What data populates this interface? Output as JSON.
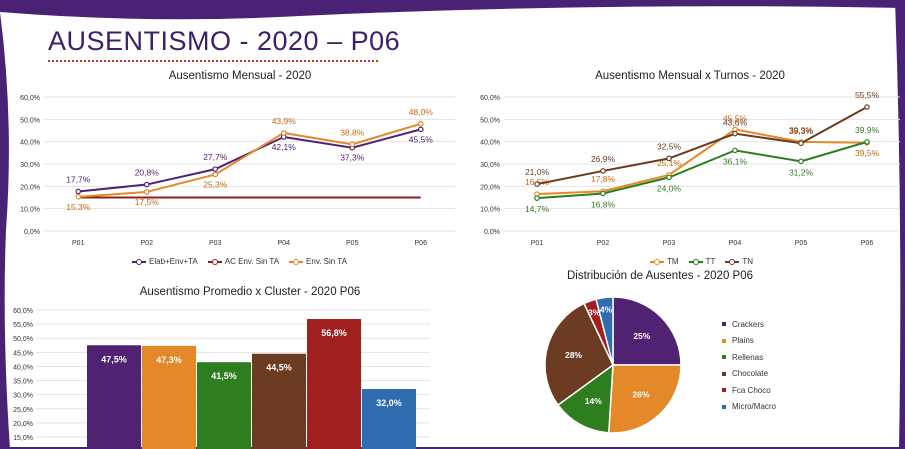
{
  "page": {
    "title": "AUSENTISMO - 2020 – P06",
    "colors": {
      "frame": "#4a2275",
      "title": "#3b2169"
    }
  },
  "chart_data": [
    {
      "id": "mensual",
      "type": "line",
      "title": "Ausentismo Mensual - 2020",
      "categories": [
        "P01",
        "P02",
        "P03",
        "P04",
        "P05",
        "P06"
      ],
      "yticks": [
        "0,0%",
        "10,0%",
        "20,0%",
        "30,0%",
        "40,0%",
        "50,0%",
        "60,0%"
      ],
      "ylim": [
        0,
        60
      ],
      "series": [
        {
          "name": "Elab+Env+TA",
          "color": "#4f2272",
          "values": [
            17.7,
            20.8,
            27.7,
            42.1,
            37.3,
            45.5
          ],
          "labels": [
            "17,7%",
            "20,8%",
            "27,7%",
            "42,1%",
            "37,3%",
            "45,5%"
          ],
          "marker": true
        },
        {
          "name": "AC Env. Sin TA",
          "color": "#8b2020",
          "values": [
            15,
            15,
            15,
            15,
            15,
            15
          ],
          "labels": [],
          "marker": false
        },
        {
          "name": "Env. Sin TA",
          "color": "#e4892a",
          "values": [
            15.3,
            17.5,
            25.3,
            43.9,
            38.8,
            48.0
          ],
          "labels": [
            "15,3%",
            "17,5%",
            "25,3%",
            "43,9%",
            "38,8%",
            "48,0%"
          ],
          "marker": true
        }
      ]
    },
    {
      "id": "turnos",
      "type": "line",
      "title": "Ausentismo Mensual x Turnos - 2020",
      "categories": [
        "P01",
        "P02",
        "P03",
        "P04",
        "P05",
        "P06"
      ],
      "yticks": [
        "0,0%",
        "10,0%",
        "20,0%",
        "30,0%",
        "40,0%",
        "50,0%",
        "60,0%"
      ],
      "ylim": [
        0,
        60
      ],
      "series": [
        {
          "name": "TM",
          "color": "#e4892a",
          "values": [
            16.5,
            17.8,
            25.1,
            45.5,
            39.9,
            39.5
          ],
          "labels": [
            "16,5%",
            "17,8%",
            "25,1%",
            "45,5%",
            "39,9%",
            "39,5%"
          ],
          "marker": true
        },
        {
          "name": "TT",
          "color": "#2e7d1f",
          "values": [
            14.7,
            16.8,
            24.0,
            36.1,
            31.2,
            39.9
          ],
          "labels": [
            "14,7%",
            "16,8%",
            "24,0%",
            "36,1%",
            "31,2%",
            "39,9%"
          ],
          "marker": true
        },
        {
          "name": "TN",
          "color": "#6b3b22",
          "values": [
            21.0,
            26.9,
            32.5,
            43.6,
            39.3,
            55.5
          ],
          "labels": [
            "21,0%",
            "26,9%",
            "32,5%",
            "43,6%",
            "39,3%",
            "55,5%"
          ],
          "marker": true
        }
      ]
    },
    {
      "id": "cluster",
      "type": "bar",
      "title": "Ausentismo Promedio x Cluster - 2020 P06",
      "yticks": [
        "15,0%",
        "20,0%",
        "25,0%",
        "30,0%",
        "35,0%",
        "40,0%",
        "45,0%",
        "50,0%",
        "55,0%",
        "60,0%"
      ],
      "ylim": [
        15,
        60
      ],
      "values": [
        47.5,
        47.3,
        41.5,
        44.5,
        56.8,
        32.0
      ],
      "labels": [
        "47,5%",
        "47,3%",
        "41,5%",
        "44,5%",
        "56,8%",
        "32,0%"
      ],
      "colors": [
        "#4f2272",
        "#e4892a",
        "#2e7d1f",
        "#6b3b22",
        "#a02020",
        "#2f6db0"
      ]
    },
    {
      "id": "distribucion",
      "type": "pie",
      "title": "Distribución de Ausentes - 2020 P06",
      "categories": [
        "Crackers",
        "Plains",
        "Rellenas",
        "Chocolate",
        "Fca Choco",
        "Micro/Macro"
      ],
      "values": [
        25,
        26,
        14,
        28,
        3,
        4
      ],
      "labels": [
        "25%",
        "26%",
        "14%",
        "28%",
        "3%",
        "4%"
      ],
      "colors": [
        "#4f2272",
        "#e4892a",
        "#2e7d1f",
        "#6b3b22",
        "#a02020",
        "#2f6db0"
      ]
    }
  ]
}
